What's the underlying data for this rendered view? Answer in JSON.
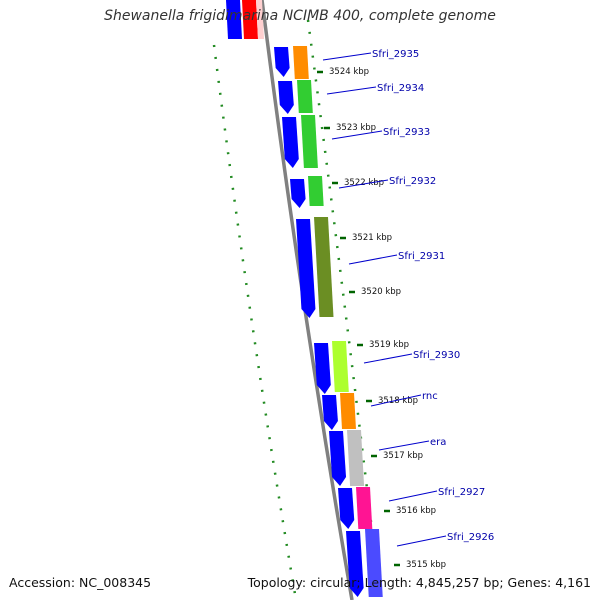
{
  "title": "Shewanella frigidimarina NCIMB 400, complete genome",
  "accession_text": "Accession: NC_008345",
  "summary_text": "Topology: circular; Length: 4,845,257 bp; Genes: 4,161",
  "tick_labels": [
    "3524 kbp",
    "3523 kbp",
    "3522 kbp",
    "3521 kbp",
    "3520 kbp",
    "3519 kbp",
    "3518 kbp",
    "3517 kbp",
    "3516 kbp",
    "3515 kbp"
  ],
  "genes": [
    {
      "label": "Sfri_2935",
      "color": "#ff8c00"
    },
    {
      "label": "Sfri_2934",
      "color": "#32cd32"
    },
    {
      "label": "Sfri_2933",
      "color": "#32cd32"
    },
    {
      "label": "Sfri_2932",
      "color": "#32cd32"
    },
    {
      "label": "Sfri_2931",
      "color": "#6b8e23"
    },
    {
      "label": "Sfri_2930",
      "color": "#adff2f"
    },
    {
      "label": "rnc",
      "color": "#ff8c00"
    },
    {
      "label": "era",
      "color": "#c0c0c0"
    },
    {
      "label": "Sfri_2927",
      "color": "#ff1493"
    },
    {
      "label": "Sfri_2926",
      "color": "#4b4bff"
    }
  ],
  "colors": {
    "strand_arrow": "#0000ff",
    "backbone": "#808080",
    "gc_dots": "#228b22",
    "label_line": "#0000cc",
    "label_text": "#0000aa",
    "tick": "#006400",
    "top_red": "#ff0000",
    "top_blue": "#0000ff"
  }
}
